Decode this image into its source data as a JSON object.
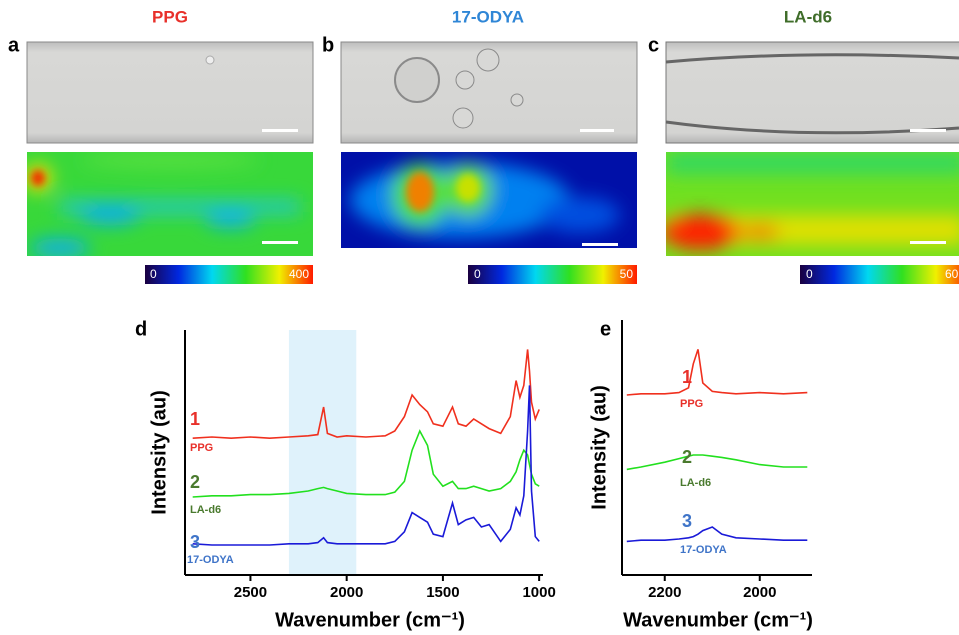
{
  "panels": [
    {
      "letter": "a",
      "title": "PPG",
      "title_color": "#e8302a",
      "colorbar": {
        "min": 0,
        "max": 400
      }
    },
    {
      "letter": "b",
      "title": "17-ODYA",
      "title_color": "#2f86d6",
      "colorbar": {
        "min": 0,
        "max": 50
      }
    },
    {
      "letter": "c",
      "title": "LA-d6",
      "title_color": "#3f6d2a",
      "colorbar": {
        "min": 0,
        "max": 60
      }
    }
  ],
  "chart_data": [
    {
      "type": "line",
      "letter": "d",
      "xlabel": "Wavenumber (cm⁻¹)",
      "ylabel": "Intensity (au)",
      "xlim": [
        2840,
        980
      ],
      "xticks": [
        2500,
        2000,
        1500,
        1000
      ],
      "ylim": [
        0,
        10
      ],
      "highlight": [
        2300,
        1950
      ],
      "x": [
        2800,
        2700,
        2600,
        2500,
        2400,
        2300,
        2200,
        2150,
        2120,
        2100,
        2050,
        2000,
        1900,
        1800,
        1750,
        1700,
        1660,
        1620,
        1580,
        1550,
        1500,
        1450,
        1420,
        1380,
        1340,
        1300,
        1260,
        1200,
        1150,
        1120,
        1100,
        1080,
        1060,
        1050,
        1040,
        1020,
        1000
      ],
      "series": [
        {
          "name": "PPG",
          "label": "1",
          "color": "#f0301e",
          "label_color": "#e8302a",
          "values": [
            5.7,
            5.75,
            5.7,
            5.75,
            5.7,
            5.75,
            5.8,
            5.85,
            7.0,
            5.9,
            5.75,
            5.8,
            5.75,
            5.8,
            6.0,
            6.6,
            7.5,
            7.1,
            6.8,
            6.3,
            6.2,
            7.0,
            6.3,
            6.2,
            6.5,
            6.3,
            6.1,
            5.9,
            6.6,
            8.1,
            7.4,
            7.9,
            9.4,
            8.5,
            7.2,
            6.5,
            6.9
          ]
        },
        {
          "name": "LA-d6",
          "label": "2",
          "color": "#22e01e",
          "label_color": "#4a7a2e",
          "values": [
            3.25,
            3.3,
            3.3,
            3.35,
            3.35,
            3.4,
            3.5,
            3.6,
            3.65,
            3.6,
            3.5,
            3.4,
            3.35,
            3.35,
            3.45,
            3.9,
            5.2,
            6.0,
            5.4,
            4.2,
            3.7,
            3.9,
            3.6,
            3.6,
            3.7,
            3.6,
            3.5,
            3.6,
            3.9,
            4.3,
            4.8,
            5.2,
            5.0,
            4.6,
            4.2,
            3.8,
            3.7
          ]
        },
        {
          "name": "17-ODYA",
          "label": "3",
          "color": "#1a1ad8",
          "label_color": "#3f74c8",
          "values": [
            1.3,
            1.25,
            1.25,
            1.25,
            1.25,
            1.3,
            1.3,
            1.35,
            1.55,
            1.35,
            1.3,
            1.3,
            1.3,
            1.3,
            1.4,
            1.8,
            2.6,
            2.4,
            2.2,
            1.7,
            1.6,
            3.0,
            2.1,
            2.3,
            2.4,
            2.0,
            2.1,
            1.4,
            1.9,
            2.8,
            2.5,
            3.3,
            6.0,
            7.9,
            3.5,
            1.6,
            1.4
          ]
        }
      ]
    },
    {
      "type": "line",
      "letter": "e",
      "xlabel": "Wavenumber (cm⁻¹)",
      "ylabel": "Intensity (au)",
      "xlim": [
        2290,
        1890
      ],
      "xticks": [
        2200,
        2000
      ],
      "ylim": [
        0,
        10
      ],
      "x": [
        2280,
        2250,
        2200,
        2170,
        2150,
        2140,
        2130,
        2120,
        2100,
        2080,
        2050,
        2000,
        1950,
        1900
      ],
      "series": [
        {
          "name": "PPG",
          "label": "1",
          "color": "#f0301e",
          "label_color": "#e8302a",
          "values": [
            7.5,
            7.55,
            7.55,
            7.6,
            7.8,
            8.8,
            9.4,
            8.0,
            7.65,
            7.6,
            7.55,
            7.6,
            7.55,
            7.6
          ]
        },
        {
          "name": "LA-d6",
          "label": "2",
          "color": "#22e01e",
          "label_color": "#4a7a2e",
          "values": [
            4.4,
            4.5,
            4.7,
            4.85,
            4.95,
            5.0,
            5.0,
            5.0,
            4.95,
            4.9,
            4.8,
            4.6,
            4.5,
            4.5
          ]
        },
        {
          "name": "17-ODYA",
          "label": "3",
          "color": "#1a1ad8",
          "label_color": "#3f74c8",
          "values": [
            1.4,
            1.45,
            1.45,
            1.5,
            1.55,
            1.6,
            1.7,
            1.85,
            2.0,
            1.7,
            1.55,
            1.5,
            1.45,
            1.45
          ]
        }
      ]
    }
  ]
}
